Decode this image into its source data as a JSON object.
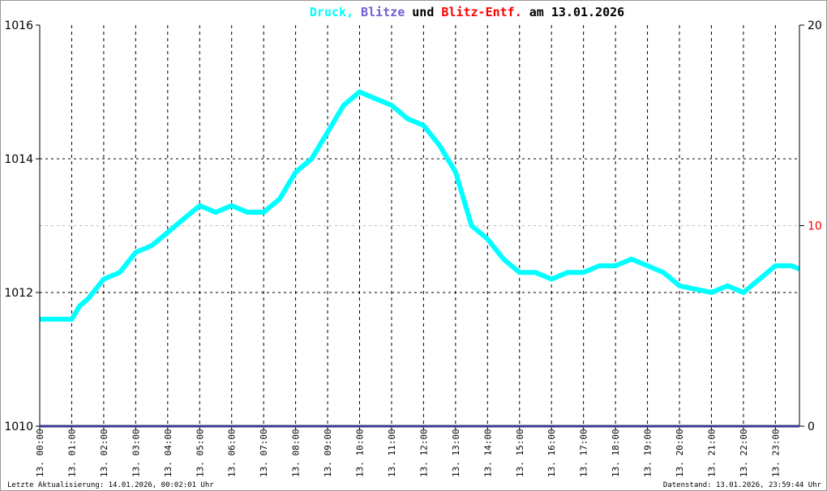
{
  "title": {
    "parts": [
      {
        "text": "Druck,",
        "color": "#00ffff"
      },
      {
        "text": "Blitze",
        "color": "#7060d0"
      },
      {
        "text": "und",
        "color": "#000000"
      },
      {
        "text": "Blitz-Entf.",
        "color": "#ff0000"
      },
      {
        "text": "am 13.01.2026",
        "color": "#000000"
      }
    ]
  },
  "footer": {
    "left": "Letzte Aktualisierung: 14.01.2026, 00:02:01 Uhr",
    "right": "Datenstand: 13.01.2026, 23:59:44 Uhr"
  },
  "chart_data": {
    "type": "line",
    "title": "Druck, Blitze und Blitz-Entf. am 13.01.2026",
    "y_left": {
      "min": 1010,
      "max": 1016,
      "ticks": [
        1010,
        1012,
        1014,
        1016
      ],
      "tick_labels": [
        "1010",
        "1012",
        "1014",
        "1016"
      ]
    },
    "y_right": {
      "min": 0,
      "max": 20,
      "ticks": [
        0,
        10,
        20
      ],
      "tick_labels": [
        "0",
        "10",
        "20"
      ],
      "tick_colors": [
        "#000000",
        "#ff0000",
        "#000000"
      ]
    },
    "x_tick_labels": [
      "13. 00:00",
      "13. 01:00",
      "13. 02:00",
      "13. 03:00",
      "13. 04:00",
      "13. 05:00",
      "13. 06:00",
      "13. 07:00",
      "13. 08:00",
      "13. 09:00",
      "13. 10:00",
      "13. 11:00",
      "13. 12:00",
      "13. 13:00",
      "13. 14:00",
      "13. 15:00",
      "13. 16:00",
      "13. 17:00",
      "13. 18:00",
      "13. 19:00",
      "13. 20:00",
      "13. 21:00",
      "13. 22:00",
      "13. 23:00"
    ],
    "grid": true,
    "series": [
      {
        "name": "Druck",
        "color": "#00ffff",
        "axis": "left",
        "x_hours": [
          0,
          0.5,
          1,
          1.25,
          1.5,
          2,
          2.5,
          3,
          3.5,
          4,
          4.5,
          5,
          5.5,
          6,
          6.5,
          7,
          7.5,
          8,
          8.5,
          9,
          9.5,
          10,
          10.5,
          11,
          11.5,
          12,
          12.5,
          13,
          13.5,
          14,
          14.5,
          15,
          15.5,
          16,
          16.5,
          17,
          17.5,
          18,
          18.5,
          19,
          19.5,
          20,
          20.5,
          21,
          21.5,
          22,
          22.5,
          23,
          23.5,
          23.75
        ],
        "values": [
          1011.6,
          1011.6,
          1011.6,
          1011.8,
          1011.9,
          1012.2,
          1012.3,
          1012.6,
          1012.7,
          1012.9,
          1013.1,
          1013.3,
          1013.2,
          1013.3,
          1013.2,
          1013.2,
          1013.4,
          1013.8,
          1014.0,
          1014.4,
          1014.8,
          1015.0,
          1014.9,
          1014.8,
          1014.6,
          1014.5,
          1014.2,
          1013.8,
          1013.0,
          1012.8,
          1012.5,
          1012.3,
          1012.3,
          1012.2,
          1012.3,
          1012.3,
          1012.4,
          1012.4,
          1012.5,
          1012.4,
          1012.3,
          1012.1,
          1012.05,
          1012.0,
          1012.1,
          1012.0,
          1012.2,
          1012.4,
          1012.4,
          1012.35
        ]
      }
    ]
  }
}
